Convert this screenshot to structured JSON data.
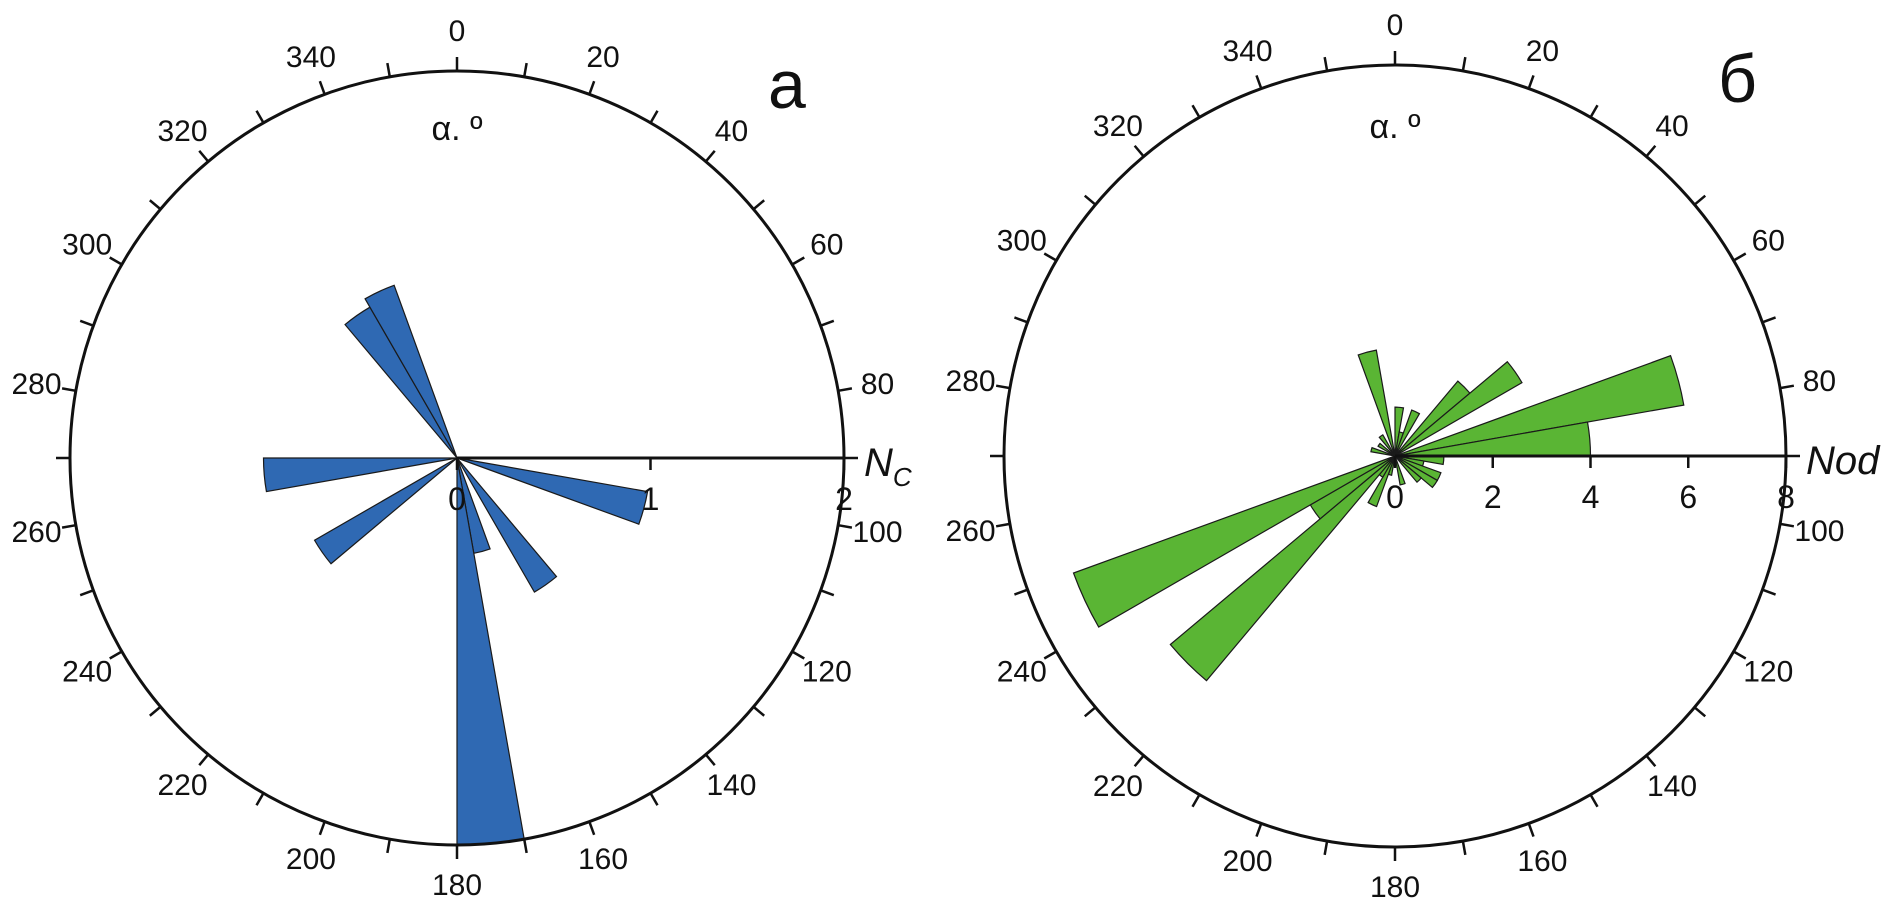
{
  "chart_data": [
    {
      "type": "rose",
      "panel_letter": "а",
      "angle_label": "α. º",
      "radial_label": "N",
      "radial_label_sub": "C",
      "angle_ticks": [
        "0",
        "20",
        "40",
        "60",
        "80",
        "100",
        "120",
        "140",
        "160",
        "180",
        "200",
        "220",
        "240",
        "260",
        "280",
        "300",
        "320",
        "340"
      ],
      "radial_ticks": [
        "0",
        "1",
        "2"
      ],
      "rmax": 2,
      "bin_width": 10,
      "sectors": [
        {
          "start": 100,
          "end": 110,
          "value": 1.0
        },
        {
          "start": 140,
          "end": 150,
          "value": 0.8
        },
        {
          "start": 160,
          "end": 170,
          "value": 0.5
        },
        {
          "start": 170,
          "end": 180,
          "value": 2.0
        },
        {
          "start": 230,
          "end": 240,
          "value": 0.85
        },
        {
          "start": 260,
          "end": 270,
          "value": 1.0
        },
        {
          "start": 320,
          "end": 330,
          "value": 0.9
        },
        {
          "start": 330,
          "end": 340,
          "value": 0.95
        }
      ],
      "colors": {
        "fill": "#2f69b3",
        "stroke": "#1a1a1a"
      }
    },
    {
      "type": "rose",
      "panel_letter": "б",
      "angle_label": "α. º",
      "radial_label": "Nod",
      "angle_ticks": [
        "0",
        "20",
        "40",
        "60",
        "80",
        "100",
        "120",
        "140",
        "160",
        "180",
        "200",
        "220",
        "240",
        "260",
        "280",
        "300",
        "320",
        "340"
      ],
      "radial_ticks": [
        "0",
        "2",
        "4",
        "6",
        "8"
      ],
      "rmax": 8,
      "bin_width": 10,
      "sectors": [
        {
          "start": 0,
          "end": 10,
          "value": 1.0
        },
        {
          "start": 10,
          "end": 20,
          "value": 0.5
        },
        {
          "start": 20,
          "end": 30,
          "value": 1.0
        },
        {
          "start": 40,
          "end": 50,
          "value": 2.0
        },
        {
          "start": 50,
          "end": 60,
          "value": 3.0
        },
        {
          "start": 70,
          "end": 80,
          "value": 6.0
        },
        {
          "start": 80,
          "end": 90,
          "value": 4.0
        },
        {
          "start": 90,
          "end": 100,
          "value": 1.0
        },
        {
          "start": 100,
          "end": 110,
          "value": 0.6
        },
        {
          "start": 110,
          "end": 120,
          "value": 1.0
        },
        {
          "start": 120,
          "end": 130,
          "value": 1.0
        },
        {
          "start": 130,
          "end": 140,
          "value": 0.7
        },
        {
          "start": 160,
          "end": 170,
          "value": 0.6
        },
        {
          "start": 190,
          "end": 200,
          "value": 0.4
        },
        {
          "start": 200,
          "end": 210,
          "value": 1.1
        },
        {
          "start": 210,
          "end": 220,
          "value": 0.5
        },
        {
          "start": 220,
          "end": 230,
          "value": 6.0
        },
        {
          "start": 230,
          "end": 240,
          "value": 2.0
        },
        {
          "start": 240,
          "end": 250,
          "value": 7.0
        },
        {
          "start": 280,
          "end": 290,
          "value": 0.5
        },
        {
          "start": 300,
          "end": 310,
          "value": 0.4
        },
        {
          "start": 320,
          "end": 330,
          "value": 0.5
        },
        {
          "start": 340,
          "end": 350,
          "value": 2.2
        }
      ],
      "colors": {
        "fill": "#5ab534",
        "stroke": "#1a1a1a"
      }
    }
  ]
}
